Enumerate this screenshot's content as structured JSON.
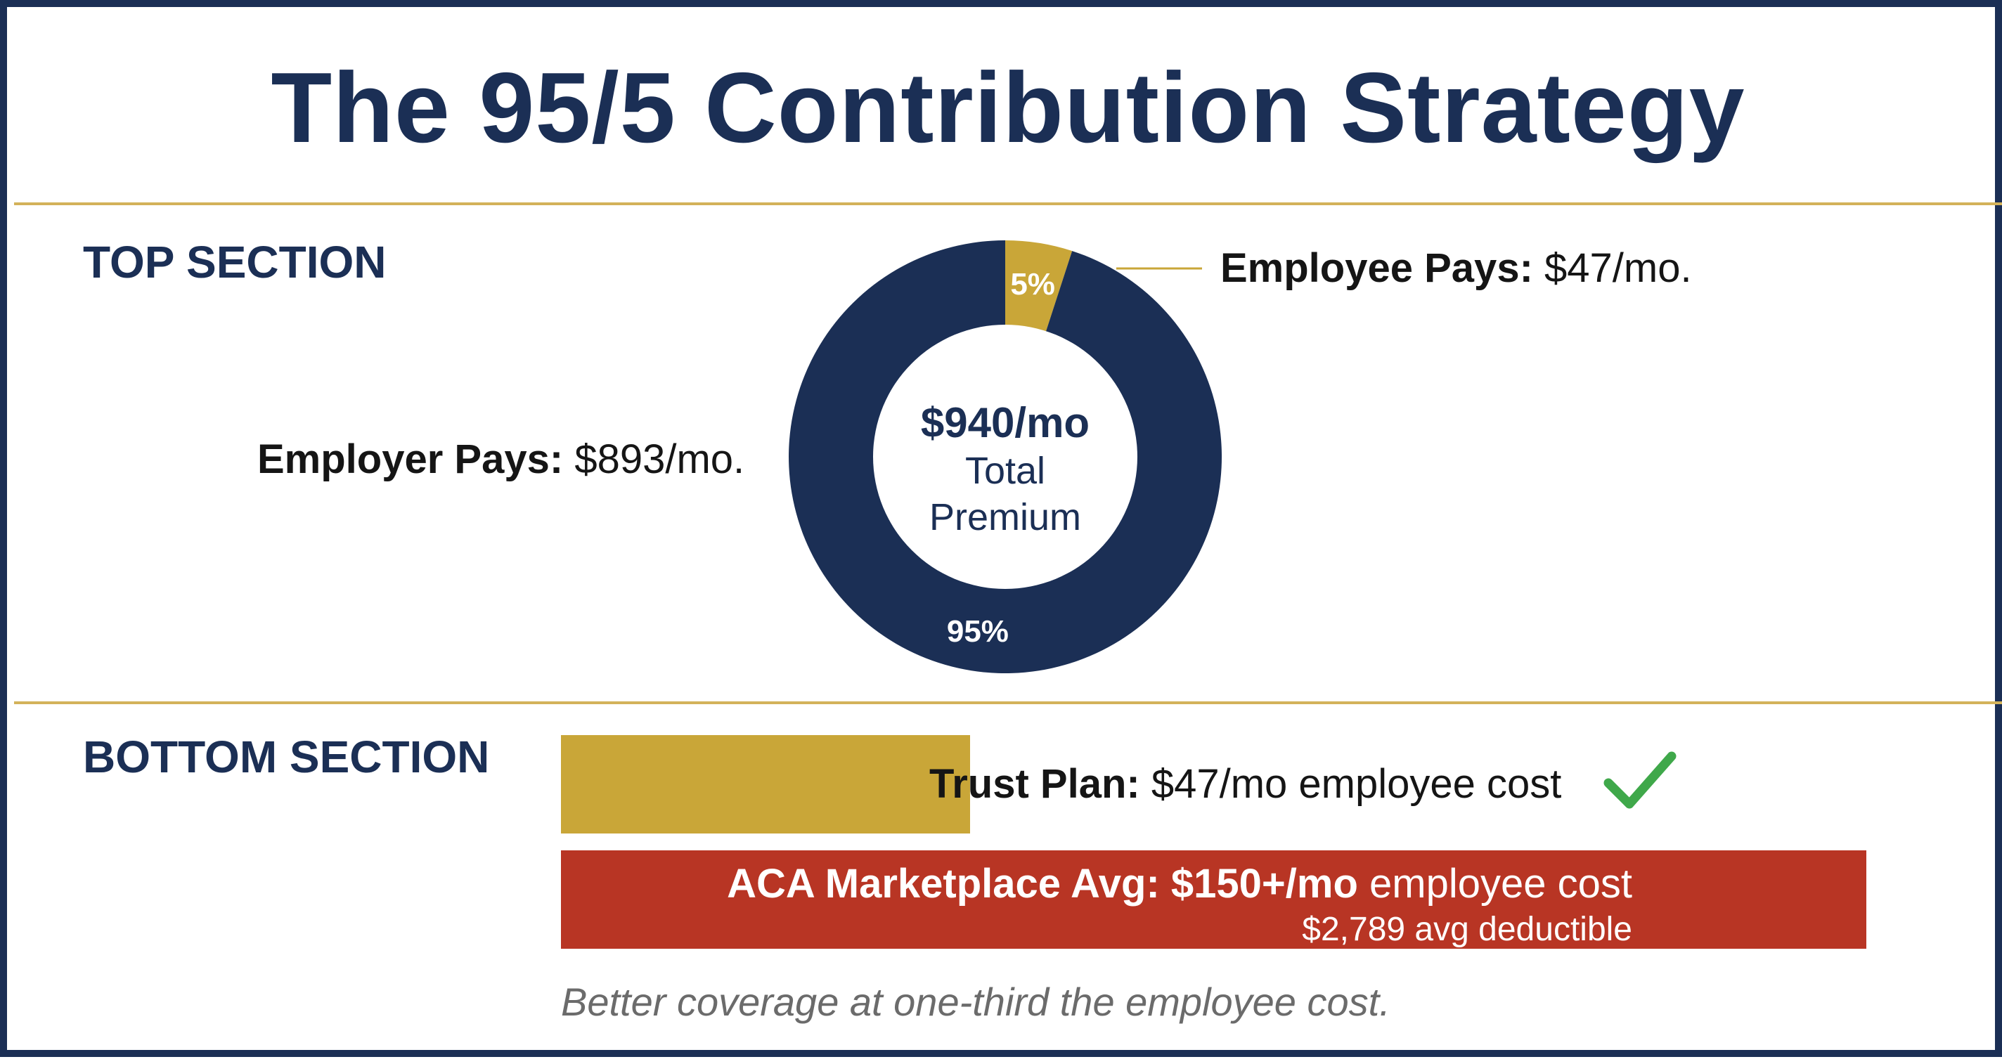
{
  "title": "The 95/5 Contribution Strategy",
  "colors": {
    "navy": "#1b2f55",
    "gold": "#c9a638",
    "red": "#b83524",
    "green": "#3fa84a",
    "divider": "#d3b25a"
  },
  "top_section": {
    "label": "TOP SECTION",
    "employee": {
      "label": "Employee Pays:",
      "value": "$47/mo."
    },
    "employer": {
      "label": "Employer Pays:",
      "value": "$893/mo."
    },
    "center": {
      "amount": "$940/mo",
      "line1": "Total",
      "line2": "Premium"
    }
  },
  "bottom_section": {
    "label": "BOTTOM SECTION",
    "trust": {
      "label": "Trust Plan:",
      "value": "$47/mo employee cost"
    },
    "aca": {
      "label": "ACA Marketplace Avg: $150+/mo",
      "value": "employee cost",
      "sub": "$2,789 avg deductible"
    },
    "footnote": "Better coverage at one-third the employee cost."
  },
  "chart_data": [
    {
      "type": "pie",
      "labels": [
        "Employee",
        "Employer"
      ],
      "values": [
        5,
        95
      ],
      "slice_labels": [
        "5%",
        "95%"
      ],
      "colors": [
        "#c9a638",
        "#1b2f55"
      ]
    },
    {
      "type": "bar",
      "orientation": "horizontal",
      "categories": [
        "Trust Plan",
        "ACA Marketplace Avg"
      ],
      "values": [
        47,
        150
      ],
      "colors": [
        "#c9a638",
        "#b83524"
      ]
    }
  ],
  "icons": {
    "check": "check-icon"
  }
}
